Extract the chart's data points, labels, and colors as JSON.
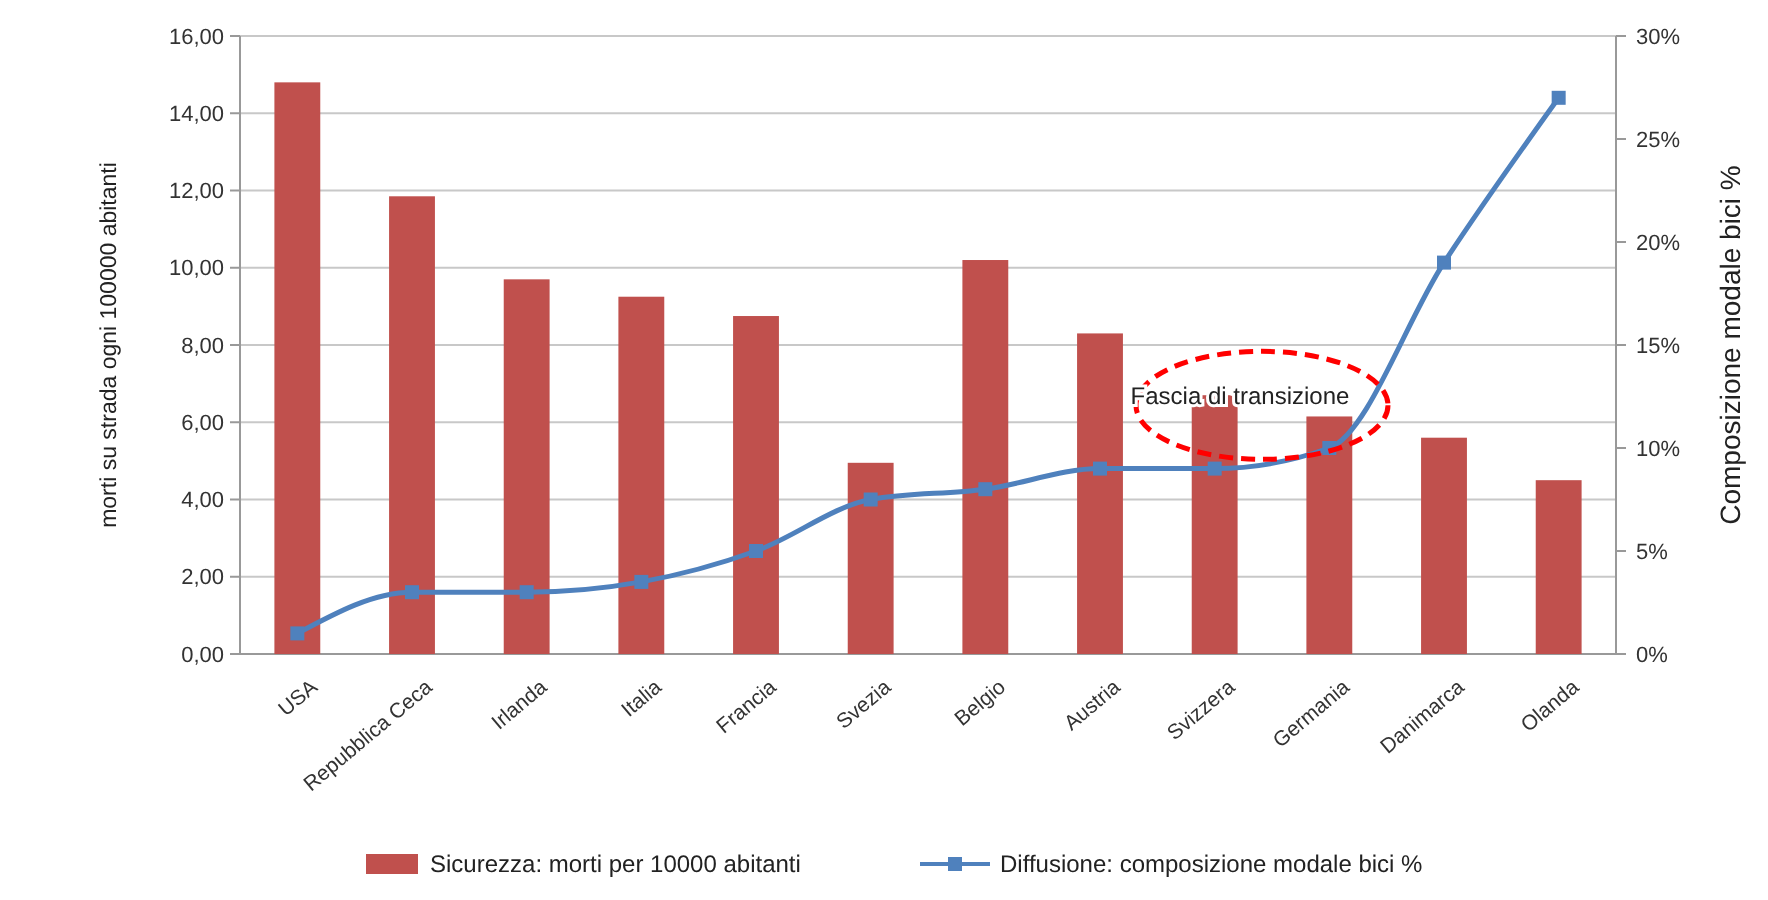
{
  "chart_data": {
    "type": "bar",
    "ylabel": "morti su strada ogni 100000 abitanti",
    "y2label": "Composizione modale bici %",
    "categories": [
      "USA",
      "Repubblica Ceca",
      "Irlanda",
      "Italia",
      "Francia",
      "Svezia",
      "Belgio",
      "Austria",
      "Svizzera",
      "Germania",
      "Danimarca",
      "Olanda"
    ],
    "series": [
      {
        "name": "Sicurezza: morti per 10000 abitanti",
        "color": "#c0504d",
        "values": [
          14.8,
          11.85,
          9.7,
          9.25,
          8.75,
          4.95,
          10.2,
          8.3,
          6.7,
          6.15,
          5.6,
          4.5
        ]
      },
      {
        "name": "Diffusione: composizione modale bici %",
        "type": "line",
        "axis": "y2",
        "color": "#4f81bd",
        "marker": "square",
        "values": [
          1,
          3,
          3,
          3.5,
          5,
          7.5,
          8,
          9,
          9,
          10,
          19,
          27
        ]
      }
    ],
    "ylim": [
      0,
      16
    ],
    "yticks": [
      {
        "value": 0,
        "label": "0,00"
      },
      {
        "value": 2,
        "label": "2,00"
      },
      {
        "value": 4,
        "label": "4,00"
      },
      {
        "value": 6,
        "label": "6,00"
      },
      {
        "value": 8,
        "label": "8,00"
      },
      {
        "value": 10,
        "label": "10,00"
      },
      {
        "value": 12,
        "label": "12,00"
      },
      {
        "value": 14,
        "label": "14,00"
      },
      {
        "value": 16,
        "label": "16,00"
      }
    ],
    "y2lim": [
      0,
      30
    ],
    "y2ticks": [
      {
        "value": 0,
        "label": "0%"
      },
      {
        "value": 5,
        "label": "5%"
      },
      {
        "value": 10,
        "label": "10%"
      },
      {
        "value": 15,
        "label": "15%"
      },
      {
        "value": 20,
        "label": "20%"
      },
      {
        "value": 25,
        "label": "25%"
      },
      {
        "value": 30,
        "label": "30%"
      }
    ],
    "grid": "y",
    "legend": "bottom",
    "annotations": [
      {
        "text": "Fascia di transizione",
        "x": "Svizzera",
        "y": 6.8
      }
    ]
  }
}
